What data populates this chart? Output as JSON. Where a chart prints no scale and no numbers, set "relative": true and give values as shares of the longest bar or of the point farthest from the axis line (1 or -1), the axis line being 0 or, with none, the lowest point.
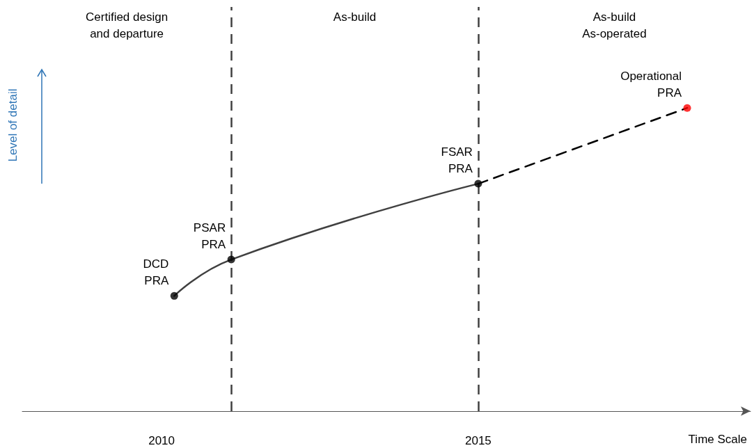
{
  "chart_data": {
    "type": "line",
    "relative": true,
    "xlabel": "Time Scale",
    "ylabel": "Level of detail",
    "xlim": [
      2007.8,
      2019.3
    ],
    "xticks": [
      2010,
      2015
    ],
    "grid": false,
    "series": [
      {
        "x": [
          2010.2,
          2011.1,
          2015.0
        ],
        "values": [
          0.38,
          0.5,
          0.75
        ],
        "color": "#404040",
        "line_style": "solid",
        "marker": "none"
      },
      {
        "x": [
          2015.0,
          2018.3
        ],
        "values": [
          0.75,
          1
        ],
        "color": "#000000",
        "line_style": "dashed",
        "marker": "none"
      },
      {
        "type": "scatter",
        "x": [
          2010.2,
          2011.1,
          2015.0,
          2018.3
        ],
        "values": [
          0.38,
          0.5,
          0.75,
          1
        ],
        "colors": [
          "#000000",
          "#000000",
          "#000000",
          "#ff0000"
        ],
        "marker": "circle"
      }
    ],
    "ref_lines": [
      {
        "axis": "x",
        "value": 2011.1,
        "color": "#404040",
        "line_style": "dashed"
      },
      {
        "axis": "x",
        "value": 2015.0,
        "color": "#404040",
        "line_style": "dashed"
      }
    ],
    "annotations": [
      "Certified design\nand departure",
      "As-build",
      "As-build\nAs-operated",
      {
        "text": "DCD\nPRA",
        "x": 2010.2,
        "y": 0.38
      },
      {
        "text": "PSAR\nPRA",
        "x": 2011.1,
        "y": 0.5
      },
      {
        "text": "FSAR\nPRA",
        "x": 2015.0,
        "y": 0.75
      },
      {
        "text": "Operational\nPRA",
        "x": 2018.3,
        "y": 1
      }
    ]
  }
}
